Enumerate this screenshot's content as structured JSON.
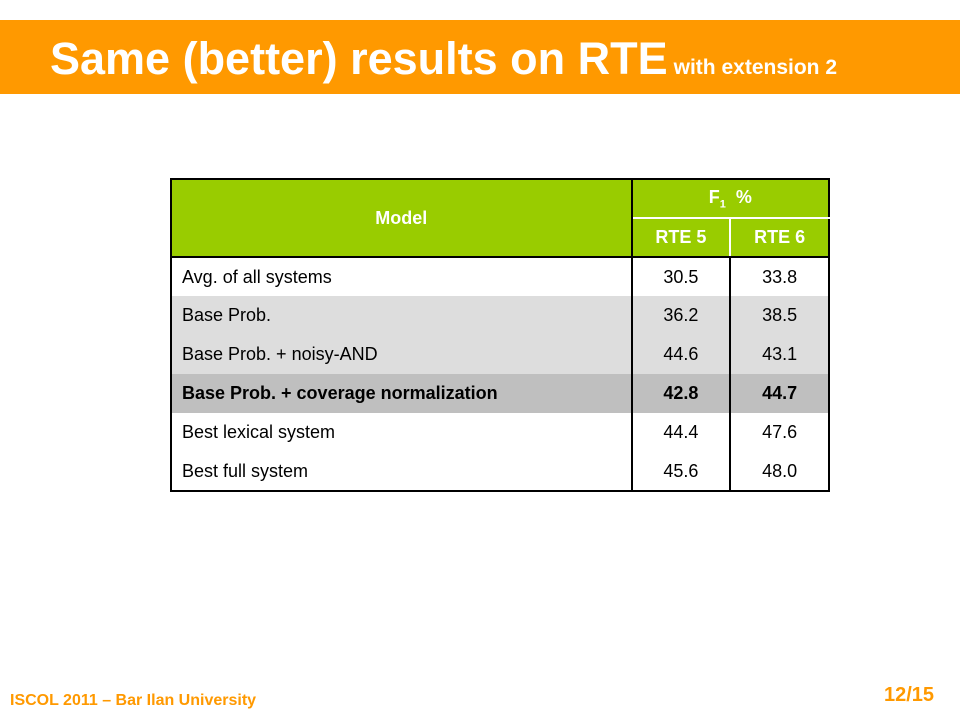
{
  "slide": {
    "title": "Same (better) results on RTE",
    "title_suffix": "with extension 2",
    "footer": "ISCOL 2011 – Bar Ilan University",
    "page_number": "12/15",
    "accent_color": "#ff9900",
    "header_color": "#99cc00"
  },
  "table": {
    "header": {
      "model": "Model",
      "metric_letter": "F",
      "metric_sub": "1",
      "metric_unit": "%",
      "col1": "RTE 5",
      "col2": "RTE 6"
    },
    "rows": [
      {
        "model": "Avg. of all systems",
        "rte5": "30.5",
        "rte6": "33.8"
      },
      {
        "model": "Base Prob.",
        "rte5": "36.2",
        "rte6": "38.5"
      },
      {
        "model": "Base Prob.  + noisy-AND",
        "rte5": "44.6",
        "rte6": "43.1"
      },
      {
        "model": "Base Prob.  + coverage normalization",
        "rte5": "42.8",
        "rte6": "44.7"
      },
      {
        "model": "Best lexical system",
        "rte5": "44.4",
        "rte6": "47.6"
      },
      {
        "model": "Best full system",
        "rte5": "45.6",
        "rte6": "48.0"
      }
    ]
  }
}
